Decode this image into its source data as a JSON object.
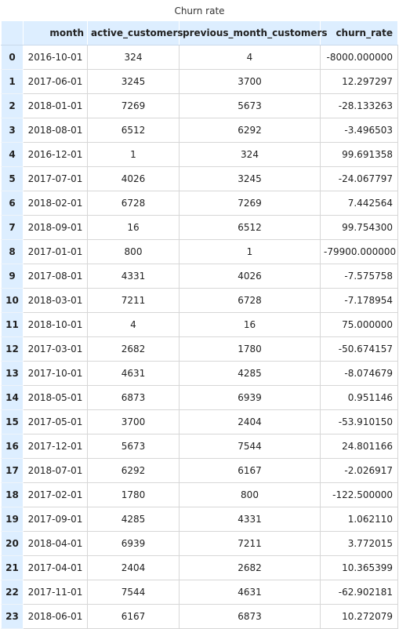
{
  "caption": "Churn rate",
  "columns": {
    "index": "",
    "month": "month",
    "active": "active_customers",
    "prev": "previous_month_customers",
    "churn": "churn_rate"
  },
  "rows": [
    {
      "idx": "0",
      "month": "2016-10-01",
      "active": "324",
      "prev": "4",
      "churn": "-8000.000000"
    },
    {
      "idx": "1",
      "month": "2017-06-01",
      "active": "3245",
      "prev": "3700",
      "churn": "12.297297"
    },
    {
      "idx": "2",
      "month": "2018-01-01",
      "active": "7269",
      "prev": "5673",
      "churn": "-28.133263"
    },
    {
      "idx": "3",
      "month": "2018-08-01",
      "active": "6512",
      "prev": "6292",
      "churn": "-3.496503"
    },
    {
      "idx": "4",
      "month": "2016-12-01",
      "active": "1",
      "prev": "324",
      "churn": "99.691358"
    },
    {
      "idx": "5",
      "month": "2017-07-01",
      "active": "4026",
      "prev": "3245",
      "churn": "-24.067797"
    },
    {
      "idx": "6",
      "month": "2018-02-01",
      "active": "6728",
      "prev": "7269",
      "churn": "7.442564"
    },
    {
      "idx": "7",
      "month": "2018-09-01",
      "active": "16",
      "prev": "6512",
      "churn": "99.754300"
    },
    {
      "idx": "8",
      "month": "2017-01-01",
      "active": "800",
      "prev": "1",
      "churn": "-79900.000000"
    },
    {
      "idx": "9",
      "month": "2017-08-01",
      "active": "4331",
      "prev": "4026",
      "churn": "-7.575758"
    },
    {
      "idx": "10",
      "month": "2018-03-01",
      "active": "7211",
      "prev": "6728",
      "churn": "-7.178954"
    },
    {
      "idx": "11",
      "month": "2018-10-01",
      "active": "4",
      "prev": "16",
      "churn": "75.000000"
    },
    {
      "idx": "12",
      "month": "2017-03-01",
      "active": "2682",
      "prev": "1780",
      "churn": "-50.674157"
    },
    {
      "idx": "13",
      "month": "2017-10-01",
      "active": "4631",
      "prev": "4285",
      "churn": "-8.074679"
    },
    {
      "idx": "14",
      "month": "2018-05-01",
      "active": "6873",
      "prev": "6939",
      "churn": "0.951146"
    },
    {
      "idx": "15",
      "month": "2017-05-01",
      "active": "3700",
      "prev": "2404",
      "churn": "-53.910150"
    },
    {
      "idx": "16",
      "month": "2017-12-01",
      "active": "5673",
      "prev": "7544",
      "churn": "24.801166"
    },
    {
      "idx": "17",
      "month": "2018-07-01",
      "active": "6292",
      "prev": "6167",
      "churn": "-2.026917"
    },
    {
      "idx": "18",
      "month": "2017-02-01",
      "active": "1780",
      "prev": "800",
      "churn": "-122.500000"
    },
    {
      "idx": "19",
      "month": "2017-09-01",
      "active": "4285",
      "prev": "4331",
      "churn": "1.062110"
    },
    {
      "idx": "20",
      "month": "2018-04-01",
      "active": "6939",
      "prev": "7211",
      "churn": "3.772015"
    },
    {
      "idx": "21",
      "month": "2017-04-01",
      "active": "2404",
      "prev": "2682",
      "churn": "10.365399"
    },
    {
      "idx": "22",
      "month": "2017-11-01",
      "active": "7544",
      "prev": "4631",
      "churn": "-62.902181"
    },
    {
      "idx": "23",
      "month": "2018-06-01",
      "active": "6167",
      "prev": "6873",
      "churn": "10.272079"
    }
  ]
}
